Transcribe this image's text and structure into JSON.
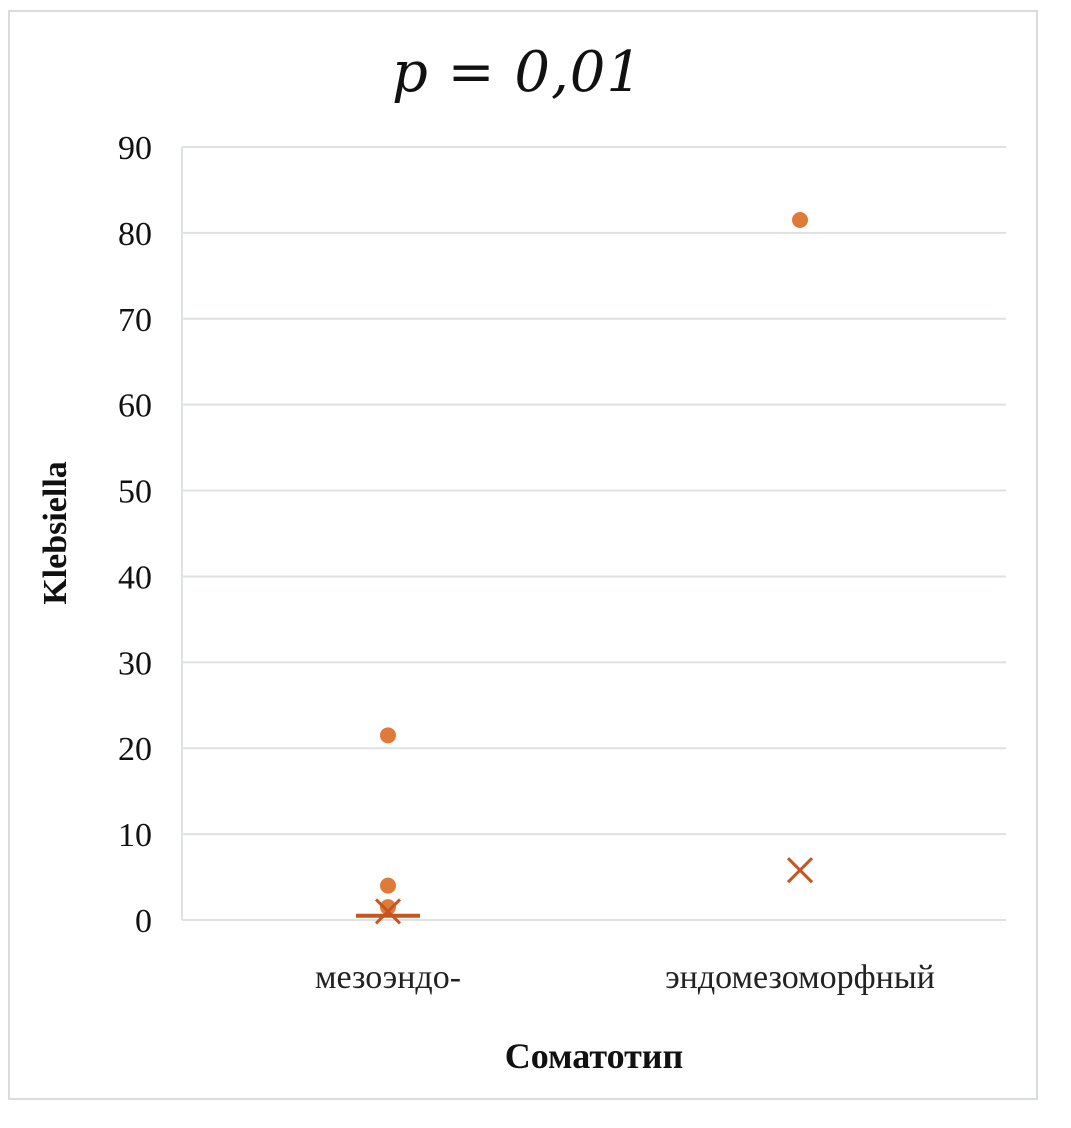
{
  "chart_data": {
    "type": "scatter",
    "title": "p = 0,01",
    "xlabel": "Соматотип",
    "ylabel": "Klebsiella",
    "ylim": [
      0,
      90
    ],
    "yticks": [
      0,
      10,
      20,
      30,
      40,
      50,
      60,
      70,
      80,
      90
    ],
    "categories": [
      "мезоэндо-",
      "эндомезоморфный"
    ],
    "grid": true,
    "legend": "none",
    "colors": {
      "marker": "#e07a38",
      "cross": "#c8551f",
      "grid": "#dfe2e2"
    },
    "groups": [
      {
        "category": "мезоэндо-",
        "points": [
          21.5,
          4,
          1.5
        ],
        "mean": 1,
        "median": 0.5
      },
      {
        "category": "эндомезоморфный",
        "points": [
          81.5
        ],
        "mean": 5.8
      }
    ]
  }
}
